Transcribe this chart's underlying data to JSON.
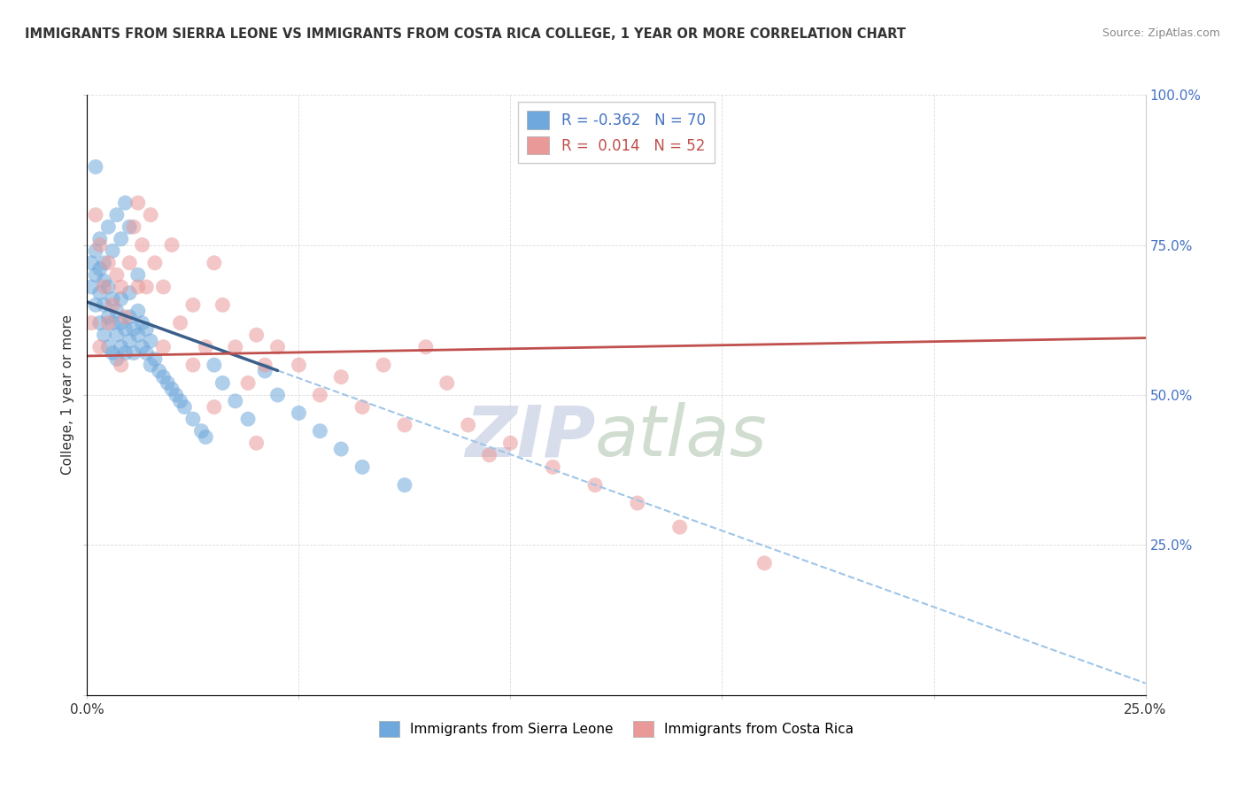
{
  "title": "IMMIGRANTS FROM SIERRA LEONE VS IMMIGRANTS FROM COSTA RICA COLLEGE, 1 YEAR OR MORE CORRELATION CHART",
  "source": "Source: ZipAtlas.com",
  "ylabel": "College, 1 year or more",
  "xmin": 0.0,
  "xmax": 0.25,
  "ymin": 0.0,
  "ymax": 1.0,
  "sierra_leone_color": "#6fa8dc",
  "costa_rica_color": "#ea9999",
  "sierra_leone_line_color": "#3a5f8a",
  "costa_rica_line_color": "#c0504d",
  "sierra_leone_dash_color": "#9fc5e8",
  "sierra_leone_R": -0.362,
  "sierra_leone_N": 70,
  "costa_rica_R": 0.014,
  "costa_rica_N": 52,
  "sl_line_x0": 0.0,
  "sl_line_y0": 0.655,
  "sl_line_x1": 0.25,
  "sl_line_y1": 0.02,
  "sl_solid_xend": 0.045,
  "cr_line_x0": 0.0,
  "cr_line_y0": 0.565,
  "cr_line_x1": 0.25,
  "cr_line_y1": 0.595,
  "sierra_leone_scatter_x": [
    0.001,
    0.001,
    0.002,
    0.002,
    0.002,
    0.003,
    0.003,
    0.003,
    0.004,
    0.004,
    0.004,
    0.005,
    0.005,
    0.005,
    0.006,
    0.006,
    0.006,
    0.007,
    0.007,
    0.007,
    0.008,
    0.008,
    0.008,
    0.009,
    0.009,
    0.01,
    0.01,
    0.01,
    0.011,
    0.011,
    0.012,
    0.012,
    0.013,
    0.013,
    0.014,
    0.014,
    0.015,
    0.015,
    0.016,
    0.017,
    0.018,
    0.019,
    0.02,
    0.021,
    0.022,
    0.023,
    0.025,
    0.027,
    0.028,
    0.03,
    0.032,
    0.035,
    0.038,
    0.042,
    0.045,
    0.05,
    0.055,
    0.06,
    0.065,
    0.075,
    0.002,
    0.003,
    0.004,
    0.005,
    0.006,
    0.007,
    0.008,
    0.009,
    0.01,
    0.012
  ],
  "sierra_leone_scatter_y": [
    0.68,
    0.72,
    0.65,
    0.7,
    0.74,
    0.62,
    0.67,
    0.71,
    0.6,
    0.65,
    0.69,
    0.58,
    0.63,
    0.68,
    0.57,
    0.62,
    0.66,
    0.56,
    0.6,
    0.64,
    0.58,
    0.62,
    0.66,
    0.57,
    0.61,
    0.59,
    0.63,
    0.67,
    0.57,
    0.61,
    0.6,
    0.64,
    0.58,
    0.62,
    0.57,
    0.61,
    0.55,
    0.59,
    0.56,
    0.54,
    0.53,
    0.52,
    0.51,
    0.5,
    0.49,
    0.48,
    0.46,
    0.44,
    0.43,
    0.55,
    0.52,
    0.49,
    0.46,
    0.54,
    0.5,
    0.47,
    0.44,
    0.41,
    0.38,
    0.35,
    0.88,
    0.76,
    0.72,
    0.78,
    0.74,
    0.8,
    0.76,
    0.82,
    0.78,
    0.7
  ],
  "costa_rica_scatter_x": [
    0.001,
    0.002,
    0.003,
    0.004,
    0.005,
    0.006,
    0.007,
    0.008,
    0.009,
    0.01,
    0.011,
    0.012,
    0.013,
    0.014,
    0.015,
    0.016,
    0.018,
    0.02,
    0.022,
    0.025,
    0.028,
    0.03,
    0.032,
    0.035,
    0.038,
    0.04,
    0.042,
    0.045,
    0.05,
    0.055,
    0.06,
    0.065,
    0.07,
    0.075,
    0.08,
    0.085,
    0.09,
    0.095,
    0.1,
    0.11,
    0.12,
    0.13,
    0.14,
    0.16,
    0.003,
    0.005,
    0.008,
    0.012,
    0.018,
    0.025,
    0.03,
    0.04
  ],
  "costa_rica_scatter_y": [
    0.62,
    0.8,
    0.75,
    0.68,
    0.72,
    0.65,
    0.7,
    0.68,
    0.63,
    0.72,
    0.78,
    0.82,
    0.75,
    0.68,
    0.8,
    0.72,
    0.68,
    0.75,
    0.62,
    0.65,
    0.58,
    0.72,
    0.65,
    0.58,
    0.52,
    0.6,
    0.55,
    0.58,
    0.55,
    0.5,
    0.53,
    0.48,
    0.55,
    0.45,
    0.58,
    0.52,
    0.45,
    0.4,
    0.42,
    0.38,
    0.35,
    0.32,
    0.28,
    0.22,
    0.58,
    0.62,
    0.55,
    0.68,
    0.58,
    0.55,
    0.48,
    0.42
  ],
  "watermark_zip": "ZIP",
  "watermark_atlas": "atlas",
  "background_color": "#ffffff",
  "grid_color": "#cccccc"
}
